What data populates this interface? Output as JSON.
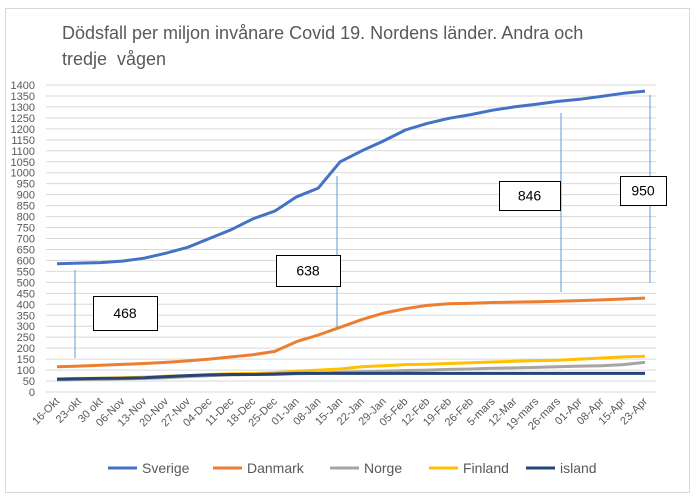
{
  "chart_data": {
    "type": "line",
    "title": "Dödsfall per miljon invånare Covid 19. Nordens länder. Andra och\ntredje  vågen",
    "categories": [
      "16-Okt",
      "23-okt",
      "30 okt",
      "06-Nov",
      "13-Nov",
      "20-Nov",
      "27-Nov",
      "04-Dec",
      "11-Dec",
      "18-Dec",
      "25-Dec",
      "01-Jan",
      "08-Jan",
      "15-Jan",
      "22-Jan",
      "29-Jan",
      "05-Feb",
      "12-Feb",
      "19-Feb",
      "26-Feb",
      "5-mars",
      "12-Mar",
      "19-mars",
      "26-mars",
      "01-Apr",
      "08-Apr",
      "15-Apr",
      "23-Apr"
    ],
    "series": [
      {
        "name": "Sverige",
        "color": "#4472c4",
        "values": [
          585,
          588,
          590,
          597,
          610,
          633,
          660,
          700,
          740,
          790,
          825,
          890,
          930,
          1050,
          1100,
          1145,
          1195,
          1225,
          1248,
          1265,
          1285,
          1300,
          1312,
          1325,
          1335,
          1348,
          1362,
          1372
        ]
      },
      {
        "name": "Danmark",
        "color": "#ed7d31",
        "values": [
          115,
          118,
          122,
          126,
          130,
          135,
          142,
          150,
          160,
          170,
          185,
          230,
          260,
          295,
          330,
          360,
          380,
          395,
          402,
          405,
          408,
          410,
          412,
          414,
          417,
          420,
          424,
          428
        ]
      },
      {
        "name": "Norge",
        "color": "#a5a5a5",
        "values": [
          55,
          57,
          58,
          60,
          62,
          65,
          70,
          75,
          78,
          80,
          80,
          83,
          85,
          90,
          92,
          95,
          98,
          100,
          103,
          105,
          108,
          110,
          112,
          115,
          118,
          120,
          125,
          135
        ]
      },
      {
        "name": "Finland",
        "color": "#ffc000",
        "values": [
          60,
          62,
          63,
          65,
          68,
          72,
          75,
          80,
          83,
          85,
          88,
          95,
          100,
          105,
          115,
          120,
          125,
          127,
          130,
          133,
          137,
          140,
          143,
          145,
          150,
          155,
          160,
          163
        ]
      },
      {
        "name": "island",
        "color": "#264478",
        "values": [
          58,
          60,
          62,
          63,
          65,
          70,
          75,
          78,
          80,
          80,
          82,
          85,
          85,
          85,
          85,
          85,
          85,
          85,
          85,
          85,
          85,
          85,
          85,
          85,
          85,
          85,
          85,
          85
        ]
      }
    ],
    "annotations": [
      "468",
      "638",
      "846",
      "950"
    ],
    "ylim": [
      0,
      1400
    ],
    "yticks": [
      0,
      50,
      100,
      150,
      200,
      250,
      300,
      350,
      400,
      450,
      500,
      550,
      600,
      650,
      700,
      750,
      800,
      850,
      900,
      950,
      1000,
      1050,
      1100,
      1150,
      1200,
      1250,
      1300,
      1350,
      1400
    ],
    "grid": true
  }
}
